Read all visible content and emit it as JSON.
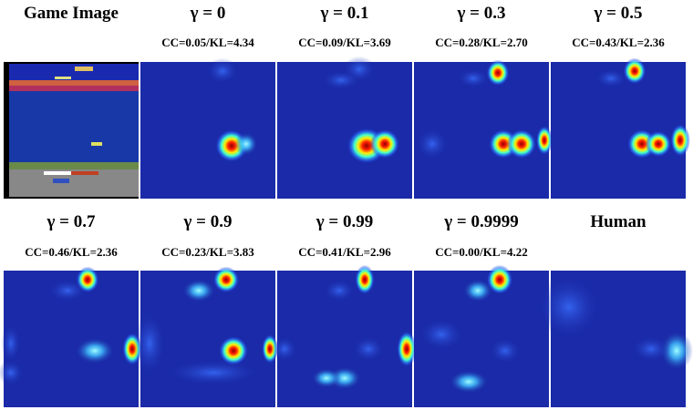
{
  "panels": [
    {
      "title": "Game Image"
    },
    {
      "title": "γ = 0",
      "metric": "CC=0.05/KL=4.34"
    },
    {
      "title": "γ = 0.1",
      "metric": "CC=0.09/KL=3.69"
    },
    {
      "title": "γ = 0.3",
      "metric": "CC=0.28/KL=2.70"
    },
    {
      "title": "γ = 0.5",
      "metric": "CC=0.43/KL=2.36"
    },
    {
      "title": "γ = 0.7",
      "metric": "CC=0.46/KL=2.36"
    },
    {
      "title": "γ = 0.9",
      "metric": "CC=0.23/KL=3.83"
    },
    {
      "title": "γ = 0.99",
      "metric": "CC=0.41/KL=2.96"
    },
    {
      "title": "γ = 0.9999",
      "metric": "CC=0.00/KL=4.22"
    },
    {
      "title": "Human"
    }
  ]
}
